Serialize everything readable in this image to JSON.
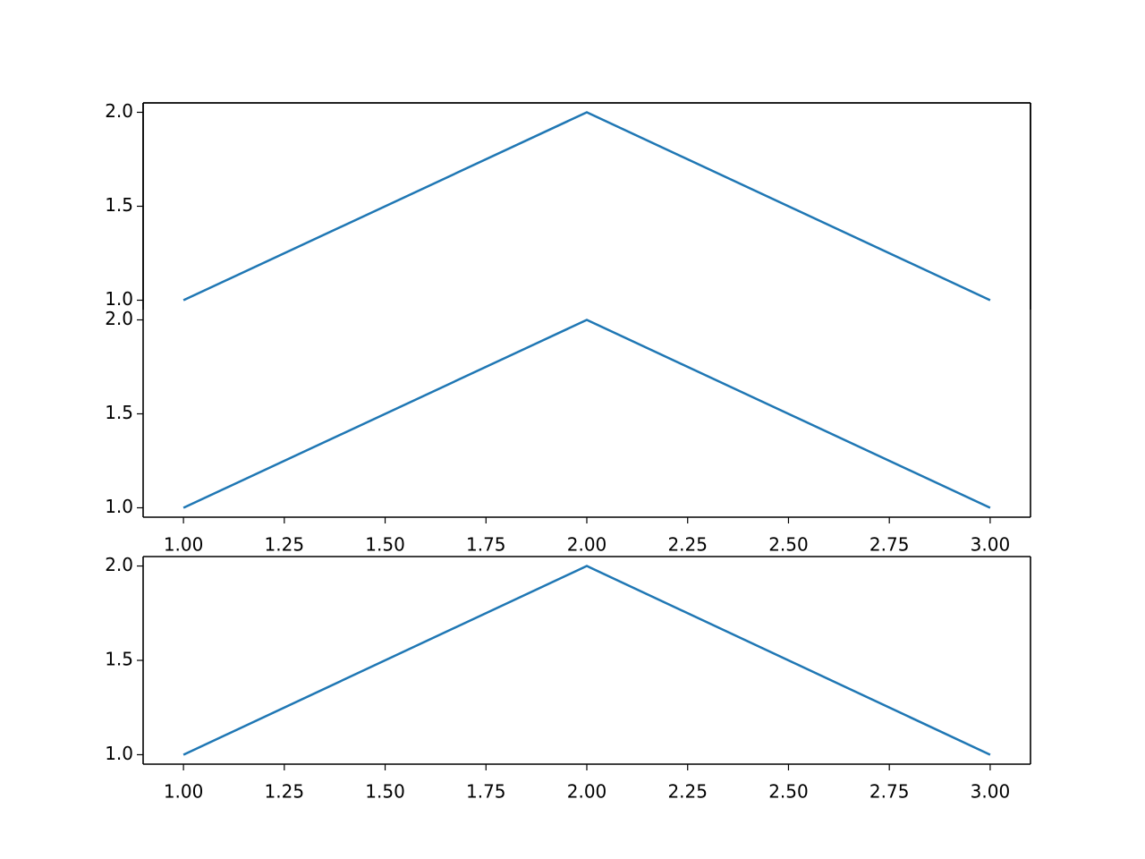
{
  "chart_data": [
    {
      "type": "line",
      "x": [
        1,
        2,
        3
      ],
      "series": [
        {
          "color": "#1f77b4",
          "values": [
            1,
            2,
            1
          ]
        }
      ],
      "xlim": [
        0.9,
        3.1
      ],
      "ylim": [
        0.95,
        2.05
      ],
      "yticks": [
        {
          "value": 1,
          "label": "1.0"
        },
        {
          "value": 1.5,
          "label": "1.5"
        },
        {
          "value": 2,
          "label": "2.0"
        }
      ]
    },
    {
      "type": "line",
      "x": [
        1,
        2,
        3
      ],
      "series": [
        {
          "color": "#1f77b4",
          "values": [
            1,
            2,
            1
          ]
        }
      ],
      "xlim": [
        0.9,
        3.1
      ],
      "ylim": [
        0.95,
        2.05
      ],
      "xticks": [
        {
          "value": 1,
          "label": "1.00"
        },
        {
          "value": 1.25,
          "label": "1.25"
        },
        {
          "value": 1.5,
          "label": "1.50"
        },
        {
          "value": 1.75,
          "label": "1.75"
        },
        {
          "value": 2,
          "label": "2.00"
        },
        {
          "value": 2.25,
          "label": "2.25"
        },
        {
          "value": 2.5,
          "label": "2.50"
        },
        {
          "value": 2.75,
          "label": "2.75"
        },
        {
          "value": 3,
          "label": "3.00"
        }
      ],
      "yticks": [
        {
          "value": 1,
          "label": "1.0"
        },
        {
          "value": 1.5,
          "label": "1.5"
        },
        {
          "value": 2,
          "label": "2.0"
        }
      ]
    },
    {
      "type": "line",
      "x": [
        1,
        2,
        3
      ],
      "series": [
        {
          "color": "#1f77b4",
          "values": [
            1,
            2,
            1
          ]
        }
      ],
      "xlim": [
        0.9,
        3.1
      ],
      "ylim": [
        0.95,
        2.05
      ],
      "xticks": [
        {
          "value": 1,
          "label": "1.00"
        },
        {
          "value": 1.25,
          "label": "1.25"
        },
        {
          "value": 1.5,
          "label": "1.50"
        },
        {
          "value": 1.75,
          "label": "1.75"
        },
        {
          "value": 2,
          "label": "2.00"
        },
        {
          "value": 2.25,
          "label": "2.25"
        },
        {
          "value": 2.5,
          "label": "2.50"
        },
        {
          "value": 2.75,
          "label": "2.75"
        },
        {
          "value": 3,
          "label": "3.00"
        }
      ],
      "yticks": [
        {
          "value": 1,
          "label": "1.0"
        },
        {
          "value": 1.5,
          "label": "1.5"
        },
        {
          "value": 2,
          "label": "2.0"
        }
      ]
    }
  ]
}
